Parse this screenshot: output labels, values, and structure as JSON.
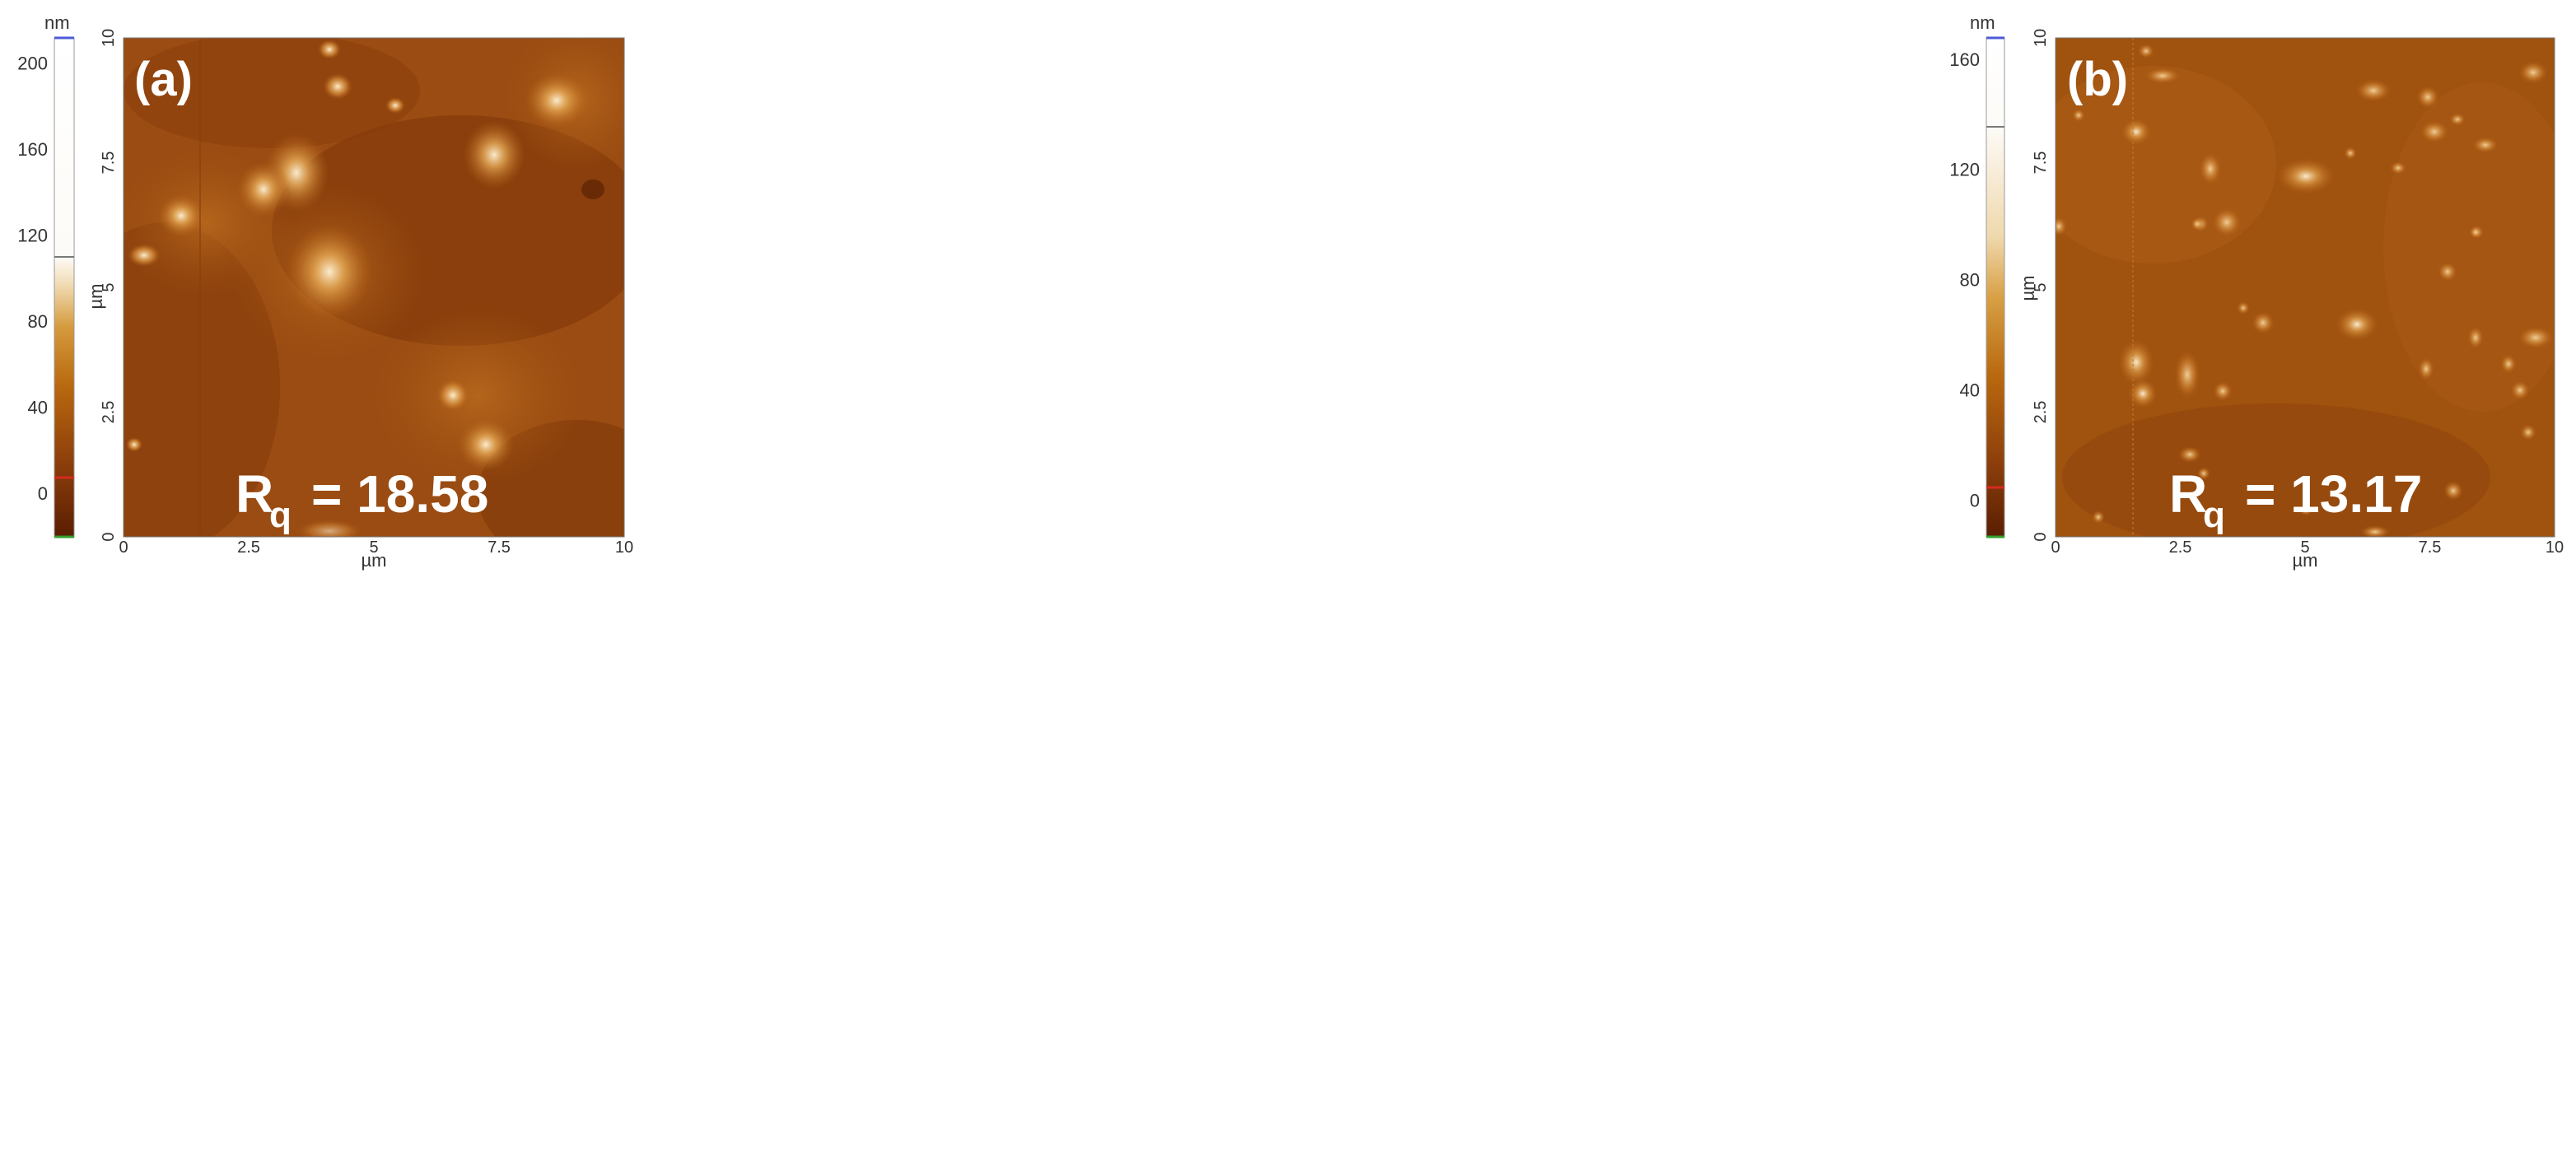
{
  "panels": [
    {
      "id": "a",
      "label": "(a)",
      "rq_value": "= 18.58",
      "scale_unit": "nm",
      "scale_ticks": [
        200,
        160,
        120,
        80,
        40,
        0
      ],
      "scale_min": -20,
      "scale_max": 212,
      "x_ticks": [
        "0",
        "2.5",
        "5",
        "7.5",
        "10"
      ],
      "y_ticks": [
        "0",
        "2.5",
        "5",
        "7.5",
        "10"
      ],
      "axis_unit": "µm"
    },
    {
      "id": "b",
      "label": "(b)",
      "rq_value": "= 13.17",
      "scale_unit": "nm",
      "scale_ticks": [
        160,
        120,
        80,
        40,
        0
      ],
      "scale_min": -13,
      "scale_max": 168,
      "x_ticks": [
        "0",
        "2.5",
        "5",
        "7.5",
        "10"
      ],
      "y_ticks": [
        "0",
        "2.5",
        "5",
        "7.5",
        "10"
      ],
      "axis_unit": "µm"
    }
  ],
  "colors": {
    "afm_dark": "#6e2a04",
    "afm_mid": "#a65512",
    "afm_bright": "#f4e2b6",
    "scale_top": "#ffffff",
    "scale_marker_top": "#4b5bd6",
    "scale_marker_low": "#d42a1f",
    "scale_marker_bottom": "#33a02c",
    "label_text": "#ffffff"
  }
}
